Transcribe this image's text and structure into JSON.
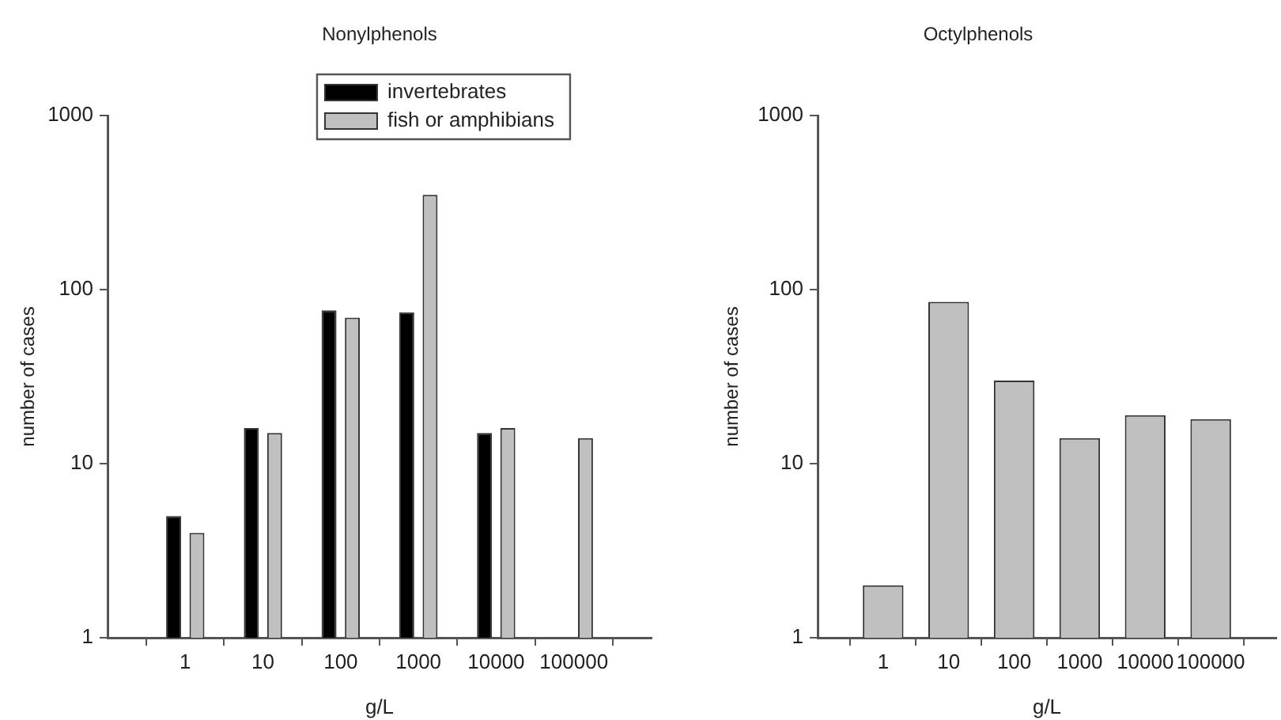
{
  "chart_data": [
    {
      "type": "bar",
      "title": "Nonylphenols",
      "xlabel": "g/L",
      "ylabel": "number of cases",
      "categories": [
        null,
        "1",
        "10",
        "100",
        "1000",
        "10000",
        "100000",
        null
      ],
      "series": [
        {
          "name": "invertebrates",
          "color": "#000000",
          "values": [
            null,
            5,
            16,
            76,
            74,
            15,
            null,
            null
          ]
        },
        {
          "name": "fish or amphibians",
          "color": "#c0c0c0",
          "values": [
            null,
            4,
            15,
            69,
            350,
            16,
            14,
            null
          ]
        }
      ],
      "log": "y",
      "ylim": [
        1,
        1000
      ],
      "yticks": [
        1,
        10,
        100,
        1000
      ],
      "grid": false,
      "legend": "top"
    },
    {
      "type": "bar",
      "title": "Octylphenols",
      "xlabel": "g/L",
      "ylabel": "number of cases",
      "categories": [
        null,
        "1",
        "10",
        "100",
        "1000",
        "10000",
        "100000",
        null
      ],
      "color": "#c0c0c0",
      "values": [
        null,
        2,
        85,
        30,
        14,
        19,
        18,
        null
      ],
      "log": "y",
      "ylim": [
        1,
        1000
      ],
      "yticks": [
        1,
        10,
        100,
        1000
      ],
      "grid": false,
      "legend": false
    }
  ]
}
